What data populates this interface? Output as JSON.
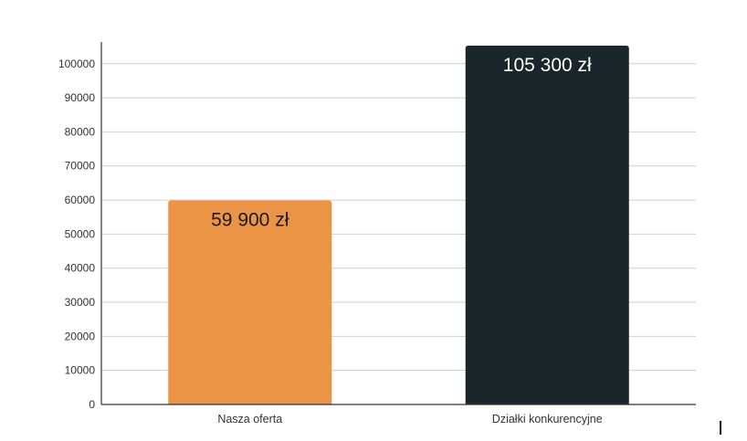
{
  "chart_data": {
    "type": "bar",
    "categories": [
      "Nasza oferta",
      "Działki konkurencyjne"
    ],
    "values": [
      59900,
      105300
    ],
    "data_labels": [
      "59 900 zł",
      "105 300 zł"
    ],
    "bar_colors": [
      "#EC9446",
      "#1B262B"
    ],
    "data_label_colors": [
      "#1a1a1a",
      "#ffffff"
    ],
    "title": "",
    "xlabel": "",
    "ylabel": "",
    "ylim": [
      0,
      105300
    ],
    "yticks": [
      0,
      10000,
      20000,
      30000,
      40000,
      50000,
      60000,
      70000,
      80000,
      90000,
      100000
    ],
    "grid": true,
    "legend": "none"
  }
}
